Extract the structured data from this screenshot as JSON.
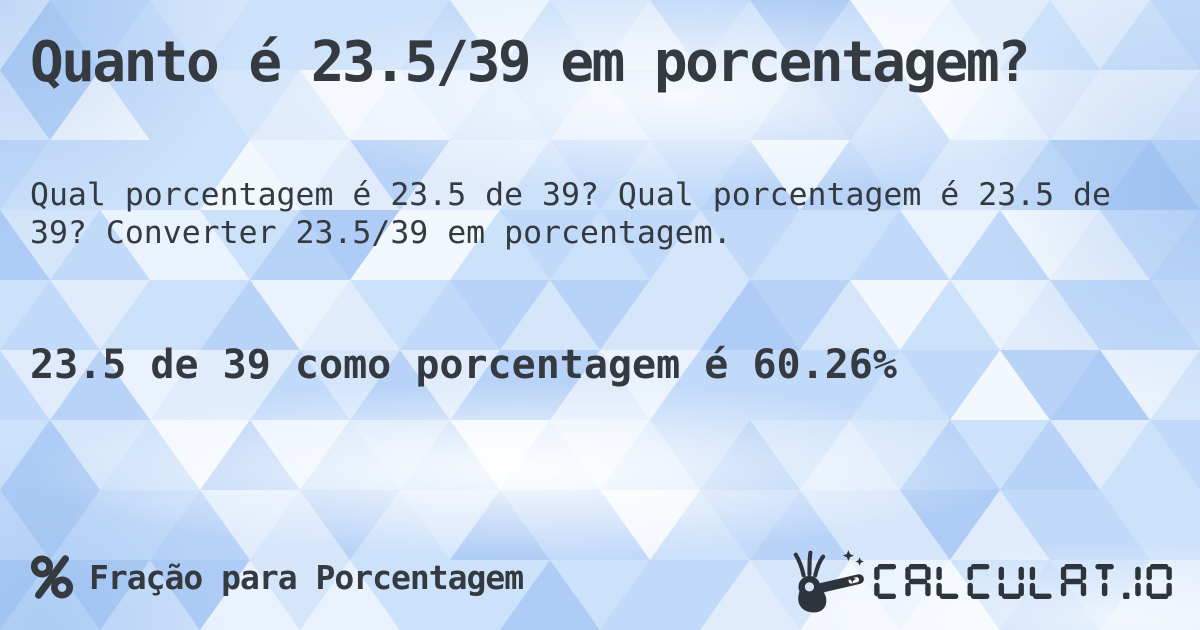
{
  "card": {
    "title": "Quanto é 23.5/39 em porcentagem?",
    "description": "Qual porcentagem é 23.5 de 39? Qual porcentagem é 23.5 de 39? Converter 23.5/39 em porcentagem.",
    "answer": "23.5 de 39 como porcentagem é 60.26%"
  },
  "footer": {
    "category": {
      "icon": "percent-icon",
      "label": "Fração para Porcentagem"
    },
    "brand": {
      "icon": "magic-wand-hand-icon",
      "logo_text": "CALCULAT.IO"
    }
  },
  "colors": {
    "text": "#353a40",
    "logo": "#2e343b",
    "background_base": "#c9ddf8",
    "triangle_palette": [
      "#ffffff",
      "#f3f8fe",
      "#e7f0fd",
      "#d9e8fb",
      "#cde1fa",
      "#cde1fa",
      "#c0d8f8",
      "#c0d8f8",
      "#b3cff6",
      "#a6c6f3"
    ]
  }
}
